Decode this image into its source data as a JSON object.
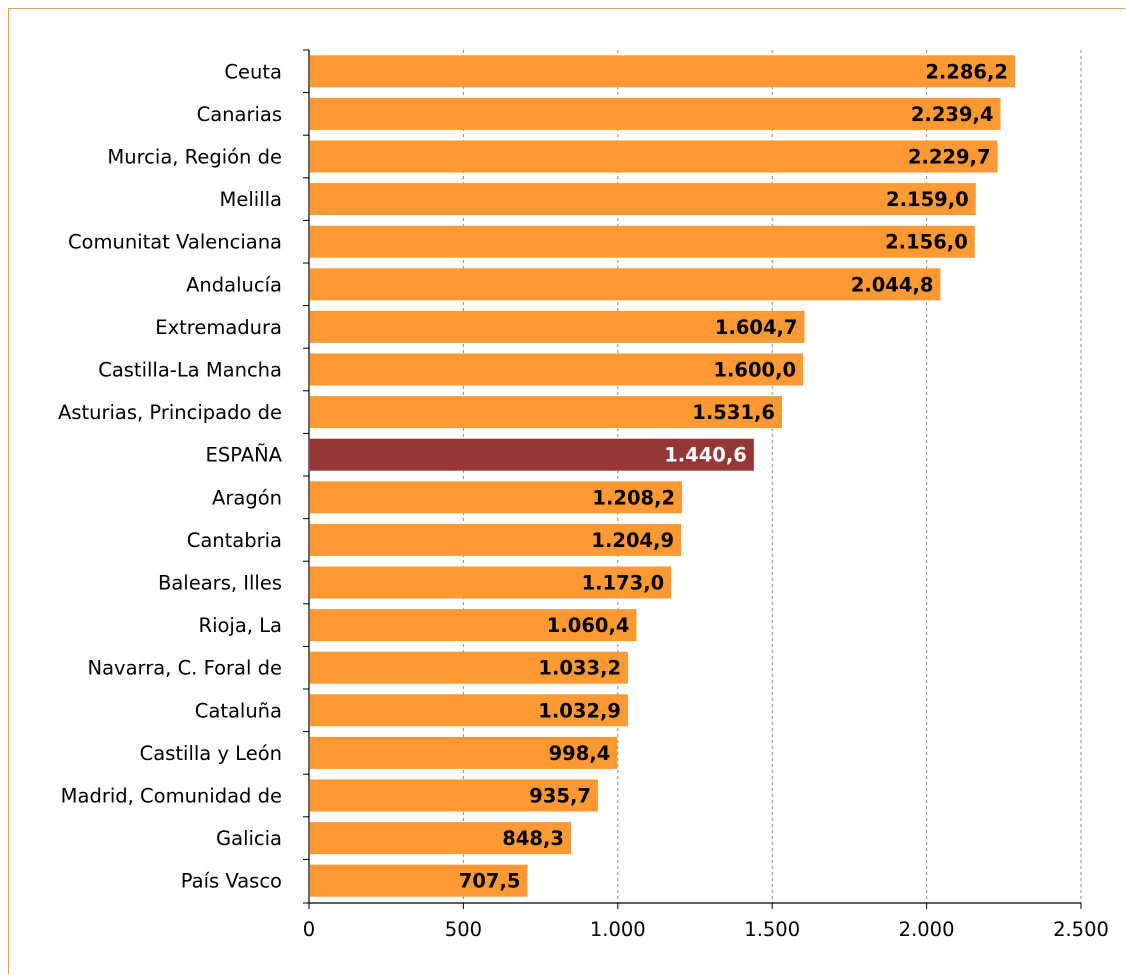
{
  "chart_data": {
    "type": "bar",
    "orientation": "horizontal",
    "categories": [
      "Ceuta",
      "Canarias",
      "Murcia, Región de",
      "Melilla",
      "Comunitat Valenciana",
      "Andalucía",
      "Extremadura",
      "Castilla-La Mancha",
      "Asturias, Principado de",
      "ESPAÑA",
      "Aragón",
      "Cantabria",
      "Balears, Illes",
      "Rioja, La",
      "Navarra, C. Foral de",
      "Cataluña",
      "Castilla y León",
      "Madrid, Comunidad de",
      "Galicia",
      "País Vasco"
    ],
    "values": [
      2286.2,
      2239.4,
      2229.7,
      2159.0,
      2156.0,
      2044.8,
      1604.7,
      1600.0,
      1531.6,
      1440.6,
      1208.2,
      1204.9,
      1173.0,
      1060.4,
      1033.2,
      1032.9,
      998.4,
      935.7,
      848.3,
      707.5
    ],
    "value_labels": [
      "2.286,2",
      "2.239,4",
      "2.229,7",
      "2.159,0",
      "2.156,0",
      "2.044,8",
      "1.604,7",
      "1.600,0",
      "1.531,6",
      "1.440,6",
      "1.208,2",
      "1.204,9",
      "1.173,0",
      "1.060,4",
      "1.033,2",
      "1.032,9",
      "998,4",
      "935,7",
      "848,3",
      "707,5"
    ],
    "highlight_category": "ESPAÑA",
    "xlim": [
      0,
      2500
    ],
    "x_ticks": [
      0,
      500,
      1000,
      1500,
      2000,
      2500
    ],
    "x_tick_labels": [
      "0",
      "500",
      "1.000",
      "1.500",
      "2.000",
      "2.500"
    ],
    "grid": "vertical dashed",
    "legend": "none",
    "title": "",
    "xlabel": "",
    "ylabel": ""
  },
  "colors": {
    "bar": "#ff9933",
    "highlight_bar": "#953735",
    "label_dark": "#000000",
    "label_highlight": "#ffffff",
    "grid": "#8c8c8c",
    "axis": "#000000"
  }
}
